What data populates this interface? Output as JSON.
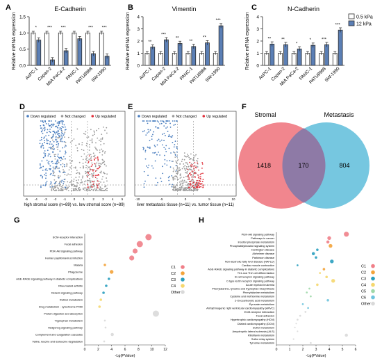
{
  "panel_letters": [
    "A",
    "B",
    "C",
    "D",
    "E",
    "F",
    "G",
    "H"
  ],
  "colors": {
    "soft_bar_fill": "#ffffff",
    "stiff_bar_fill": "#5b7fb5",
    "bar_stroke": "#2a2a2a",
    "down": "#4a7ebf",
    "up": "#e0303a",
    "not_changed": "#9a9a9a",
    "venn_left": "#f07f88",
    "venn_right": "#6fc4de",
    "venn_overlap": "#8e7aa6"
  },
  "chart_data": [
    {
      "type": "bar",
      "panel": "A",
      "title": "E-Cadherin",
      "ylabel": "Relative mRNA  expression",
      "ylim": [
        0,
        1.5
      ],
      "yticks": [
        "0.0",
        "0.5",
        "1.0",
        "1.5"
      ],
      "categories": [
        "AsPC-1",
        "Capan-2",
        "MIA PaCa-2",
        "PANC-1",
        "PATU8988",
        "SW-1990"
      ],
      "series": [
        {
          "name": "0.5 kPa",
          "values": [
            1.0,
            1.0,
            1.0,
            1.0,
            1.0,
            1.0
          ]
        },
        {
          "name": "12 kPa",
          "values": [
            0.78,
            0.17,
            0.45,
            0.82,
            0.36,
            0.28
          ]
        }
      ],
      "significance": [
        "*",
        "***",
        "***",
        "",
        "***",
        "***"
      ]
    },
    {
      "type": "bar",
      "panel": "B",
      "title": "Vimentin",
      "ylabel": "Relative mRNA  expression",
      "ylim": [
        0,
        4
      ],
      "yticks": [
        "0",
        "1",
        "2",
        "3",
        "4"
      ],
      "categories": [
        "AsPC-1",
        "Capan-2",
        "MIA PaCa-2",
        "PANC-1",
        "PATU8988",
        "SW-1990"
      ],
      "series": [
        {
          "name": "0.5 kPa",
          "values": [
            1.0,
            1.0,
            1.0,
            1.0,
            1.0,
            1.0
          ]
        },
        {
          "name": "12 kPa",
          "values": [
            1.5,
            2.1,
            1.8,
            1.55,
            1.85,
            3.25
          ]
        }
      ],
      "significance": [
        "**",
        "***",
        "**",
        "**",
        "**",
        "***"
      ]
    },
    {
      "type": "bar",
      "panel": "C",
      "title": "N-Cadherin",
      "ylabel": "Relative mRNA  expression",
      "ylim": [
        0,
        4
      ],
      "yticks": [
        "0",
        "1",
        "2",
        "3",
        "4"
      ],
      "categories": [
        "AsPC-1",
        "Capan-2",
        "MIA PaCa-2",
        "PANC-1",
        "PATU8988",
        "SW-1990"
      ],
      "series": [
        {
          "name": "0.5 kPa",
          "values": [
            1.0,
            1.0,
            1.0,
            1.0,
            1.0,
            1.0
          ]
        },
        {
          "name": "12 kPa",
          "values": [
            1.75,
            1.7,
            1.35,
            1.65,
            1.7,
            2.9
          ]
        }
      ],
      "significance": [
        "**",
        "**",
        "*",
        "*",
        "***",
        "***"
      ],
      "legend": [
        "0.5 kPa",
        "12 kPa"
      ]
    },
    {
      "type": "scatter",
      "panel": "D",
      "legend": [
        "Down regulated",
        "Not changed",
        "Up regulated"
      ],
      "xlabel": "high stromal score (n=89)  vs.  low stromal score (n=89)",
      "xticks": [
        "-5",
        "-4",
        "-3",
        "-2",
        "-1",
        "0",
        "1",
        "2",
        "3",
        "4",
        "5"
      ],
      "down_count_share": 0.55,
      "up_count_share": 0.08
    },
    {
      "type": "scatter",
      "panel": "E",
      "legend": [
        "Down regulated",
        "Not changed",
        "Up regulated"
      ],
      "xlabel": "liver metastasis tissue (n=11)  vs.  tumor tissue (n=11)",
      "xticks": [
        "-10",
        "-5",
        "0",
        "5",
        "10"
      ]
    },
    {
      "type": "venn",
      "panel": "F",
      "sets": [
        "Stromal",
        "Metastasis"
      ],
      "values": {
        "left_only": 1418,
        "overlap": 170,
        "right_only": 804
      }
    },
    {
      "type": "scatter",
      "panel": "G",
      "xlabel": "-Lg(PValue)",
      "xlim": [
        0,
        12
      ],
      "xticks": [
        "0",
        "2",
        "4",
        "6",
        "8",
        "10",
        "12"
      ],
      "legend": [
        "C1",
        "C2",
        "C3",
        "C4",
        "Other"
      ],
      "legend_colors": [
        "#f07f88",
        "#f3a33a",
        "#2a9fbf",
        "#f5d76e",
        "#d9d9d9"
      ],
      "pathways": [
        "ECM-receptor interaction",
        "Focal adhesion",
        "PI3K-Akt signaling pathway",
        "Human papillomavirus infection",
        "Malaria",
        "Phagosome",
        "AGE-RAGE signaling pathway in diabetic complications",
        "Rheumatoid arthritis",
        "Relaxin signaling pathway",
        "Retinol metabolism",
        "Drug metabolism - cytochrome P450",
        "Protein digestion and absorption",
        "Tryptophan metabolism",
        "Hedgehog signaling pathway",
        "Complement and coagulation cascades",
        "Valine, leucine and isoleucine degradation"
      ],
      "points": [
        {
          "x": 9.5,
          "c": 0,
          "s": 5
        },
        {
          "x": 8.2,
          "c": 0,
          "s": 5
        },
        {
          "x": 7.5,
          "c": 0,
          "s": 4
        },
        {
          "x": 7.0,
          "c": 0,
          "s": 4
        },
        {
          "x": 3.0,
          "c": 1,
          "s": 2
        },
        {
          "x": 4.0,
          "c": 1,
          "s": 3
        },
        {
          "x": 3.6,
          "c": 2,
          "s": 2
        },
        {
          "x": 3.2,
          "c": 2,
          "s": 2
        },
        {
          "x": 2.8,
          "c": 2,
          "s": 2
        },
        {
          "x": 2.4,
          "c": 3,
          "s": 2
        },
        {
          "x": 2.2,
          "c": 3,
          "s": 2
        },
        {
          "x": 10.6,
          "c": 4,
          "s": 5
        },
        {
          "x": 3.0,
          "c": 4,
          "s": 1.5
        },
        {
          "x": 3.1,
          "c": 4,
          "s": 1.5
        },
        {
          "x": 4.1,
          "c": 4,
          "s": 2.5
        },
        {
          "x": 2.9,
          "c": 4,
          "s": 1.5
        }
      ]
    },
    {
      "type": "scatter",
      "panel": "H",
      "xlabel": "-Lg(PValue)",
      "xlim": [
        0,
        6
      ],
      "xticks": [
        "0",
        "1",
        "2",
        "3",
        "4",
        "5",
        "6"
      ],
      "legend": [
        "C1",
        "C2",
        "C3",
        "C4",
        "C5",
        "C6",
        "Other"
      ],
      "legend_colors": [
        "#f07f88",
        "#f3a33a",
        "#2a9fbf",
        "#f5d76e",
        "#9fd8a8",
        "#6fc4de",
        "#d9d9d9"
      ],
      "pathways": [
        "PI3K-Akt signaling pathway",
        "Pathways in cancer",
        "Inositol phosphate metabolism",
        "Phosphatidylinositol signaling system",
        "Huntington disease",
        "Alzheimer disease",
        "Parkinson disease",
        "Non-alcoholic fatty liver disease (NAFLD)",
        "Cardiac muscle contraction",
        "AGE-RAGE signaling pathway in diabetic complications",
        "Th1 and Th2 cell differentiation",
        "B cell receptor signaling pathway",
        "C-type lectin receptor signaling pathway",
        "Acute myeloid leukemia",
        "Phenylalanine, tyrosine and tryptophan biosynthesis",
        "Phenylalanine metabolism",
        "Cysteine and methionine metabolism",
        "2-Oxocarboxylic acid metabolism",
        "Pyruvate metabolism",
        "Arrhythmogenic right ventricular cardiomyopathy (ARVC)",
        "ECM-receptor interaction",
        "Focal adhesion",
        "Hypertrophic cardiomyopathy (HCM)",
        "Dilated cardiomyopathy (DCM)",
        "Sulfur metabolism",
        "Amyotrophic lateral sclerosis (ALS)",
        "Riboflavin metabolism",
        "Sulfur relay system",
        "Tyrosine metabolism"
      ],
      "points": [
        {
          "x": 5.3,
          "c": 0,
          "s": 4
        },
        {
          "x": 4.0,
          "c": 0,
          "s": 3
        },
        {
          "x": 3.9,
          "c": 0,
          "s": 2.5
        },
        {
          "x": 4.1,
          "c": 1,
          "s": 3
        },
        {
          "x": 3.1,
          "c": 2,
          "s": 2
        },
        {
          "x": 2.8,
          "c": 2,
          "s": 2.5
        },
        {
          "x": 3.0,
          "c": 2,
          "s": 2
        },
        {
          "x": 4.2,
          "c": 2,
          "s": 3
        },
        {
          "x": 1.6,
          "c": 2,
          "s": 1.5
        },
        {
          "x": 3.6,
          "c": 1,
          "s": 2
        },
        {
          "x": 3.3,
          "c": 3,
          "s": 1.5
        },
        {
          "x": 3.8,
          "c": 3,
          "s": 2
        },
        {
          "x": 4.3,
          "c": 3,
          "s": 3
        },
        {
          "x": 3.1,
          "c": 3,
          "s": 2
        },
        {
          "x": 2.5,
          "c": 4,
          "s": 1.5
        },
        {
          "x": 2.3,
          "c": 4,
          "s": 1.5
        },
        {
          "x": 2.6,
          "c": 4,
          "s": 1.5
        },
        {
          "x": 3.9,
          "c": 5,
          "s": 2
        },
        {
          "x": 2.0,
          "c": 5,
          "s": 1.5
        },
        {
          "x": 2.4,
          "c": 5,
          "s": 1.5
        },
        {
          "x": 2.2,
          "c": 6,
          "s": 1.5
        },
        {
          "x": 1.8,
          "c": 6,
          "s": 1.5
        },
        {
          "x": 1.6,
          "c": 6,
          "s": 1.5
        },
        {
          "x": 1.5,
          "c": 6,
          "s": 1.2
        },
        {
          "x": 1.4,
          "c": 6,
          "s": 1.2
        },
        {
          "x": 1.6,
          "c": 6,
          "s": 1.2
        },
        {
          "x": 5.3,
          "c": 6,
          "s": 2.5
        },
        {
          "x": 1.3,
          "c": 6,
          "s": 1.2
        },
        {
          "x": 2.6,
          "c": 6,
          "s": 1.5
        }
      ]
    }
  ]
}
